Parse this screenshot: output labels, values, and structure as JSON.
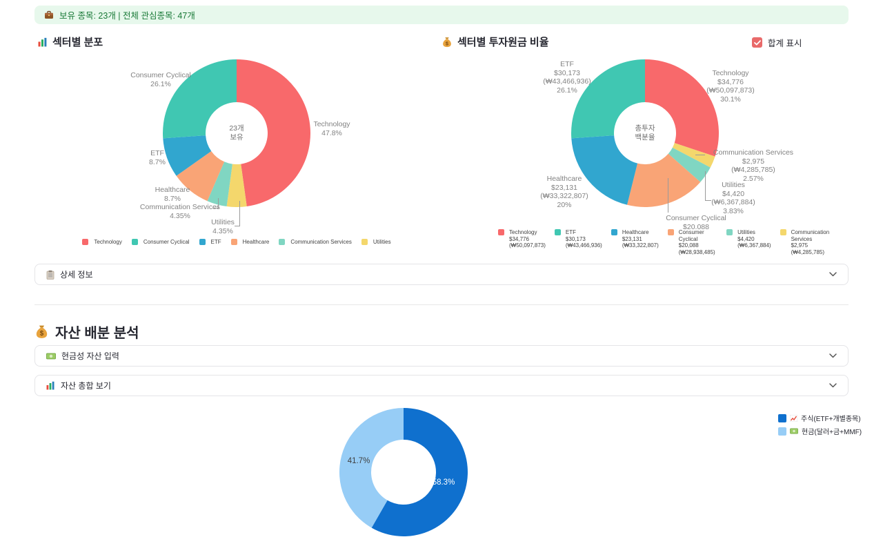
{
  "banner": {
    "icon": "briefcase-icon",
    "text": "보유 종목: 23개 | 전체 관심종목: 47개",
    "bg_color": "#E7F8EC",
    "text_color": "#1A7A38"
  },
  "left_chart": {
    "icon": "bar-chart-icon",
    "title": "섹터별 분포"
  },
  "right_chart": {
    "icon": "money-bag-icon",
    "title": "섹터별 투자원금 비율",
    "checkbox_label": "합계 표시",
    "checkbox_checked": true,
    "checkbox_color": "#E96A6A"
  },
  "expanders": {
    "detail": {
      "icon": "clipboard-icon",
      "label": "상세 정보"
    },
    "cash": {
      "icon": "banknote-icon",
      "label": "현금성 자산 입력"
    },
    "summary": {
      "icon": "bar-chart-icon",
      "label": "자산 총합 보기"
    }
  },
  "section": {
    "icon": "money-bag-icon",
    "title": "자산 배분 분석"
  },
  "chart_data": [
    {
      "type": "pie",
      "title": "섹터별 분포",
      "center_text": "23개\n보유",
      "legend_position": "bottom",
      "series": [
        {
          "label": "Technology",
          "pct": 47.8,
          "color": "#F8696B"
        },
        {
          "label": "Consumer Cyclical",
          "pct": 26.1,
          "color": "#40C7B2"
        },
        {
          "label": "ETF",
          "pct": 8.7,
          "color": "#31A6CF"
        },
        {
          "label": "Healthcare",
          "pct": 8.7,
          "color": "#F9A476"
        },
        {
          "label": "Communication Services",
          "pct": 4.35,
          "color": "#80D6C2"
        },
        {
          "label": "Utilities",
          "pct": 4.35,
          "color": "#F4D76C"
        }
      ],
      "clockwise_order": [
        0,
        5,
        4,
        3,
        2,
        1
      ]
    },
    {
      "type": "pie",
      "title": "섹터별 투자원금 비율",
      "center_text": "총투자\n백분율",
      "legend_position": "bottom",
      "series": [
        {
          "label": "Technology",
          "usd": "$34,776",
          "krw": "(₩50,097,873)",
          "pct": 30.1,
          "color": "#F8696B"
        },
        {
          "label": "ETF",
          "usd": "$30,173",
          "krw": "(₩43,466,936)",
          "pct": 26.1,
          "color": "#40C7B2"
        },
        {
          "label": "Healthcare",
          "usd": "$23,131",
          "krw": "(₩33,322,807)",
          "pct": 20,
          "color": "#31A6CF"
        },
        {
          "label": "Consumer Cyclical",
          "usd": "$20,088",
          "krw": "(₩28,938,485)",
          "pct": 17.4,
          "color": "#F9A476"
        },
        {
          "label": "Utilities",
          "usd": "$4,420",
          "krw": "(₩6,367,884)",
          "pct": 3.83,
          "color": "#80D6C2"
        },
        {
          "label": "Communication Services",
          "usd": "$2,975",
          "krw": "(₩4,285,785)",
          "pct": 2.57,
          "color": "#F4D76C"
        }
      ],
      "clockwise_order": [
        0,
        5,
        4,
        3,
        2,
        1
      ]
    },
    {
      "type": "pie",
      "legend_position": "top-right",
      "series": [
        {
          "label": "주식(ETF+개별종목)",
          "pct": 58.3,
          "color": "#0F70CE",
          "legend_icon": "chart-up-icon"
        },
        {
          "label": "현금(달러+금+MMF)",
          "pct": 41.7,
          "color": "#97CDF6",
          "legend_icon": "banknote-icon"
        }
      ],
      "clockwise_order": [
        0,
        1
      ]
    }
  ]
}
